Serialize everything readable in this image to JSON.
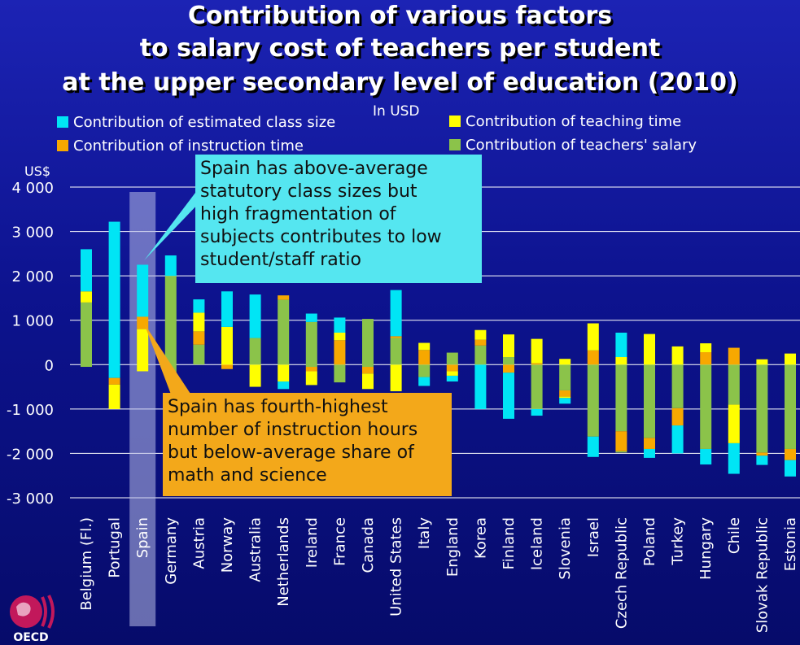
{
  "title": {
    "line1": "Contribution of various factors",
    "line2": "to salary cost of teachers per student",
    "line3": "at the upper secondary level of education (2010)"
  },
  "subtitle": "In USD",
  "legend": {
    "class_size": "Contribution of estimated class size",
    "teaching_time": "Contribution of teaching time",
    "instruction_time": "Contribution of instruction time",
    "salary": "Contribution of teachers' salary"
  },
  "annotations": {
    "callout_top": "Spain has above-average statutory class sizes but high fragmentation of subjects contributes to low student/staff ratio",
    "callout_top_lines": [
      "Spain has above-average",
      "statutory class sizes but",
      "high fragmentation of",
      "subjects contributes to low",
      "student/staff ratio"
    ],
    "callout_bottom": "Spain has fourth-highest number of instruction hours but below-average share of math and science",
    "callout_bottom_lines": [
      "Spain has fourth-highest",
      "number of instruction hours",
      "but below-average share of",
      "math and science"
    ]
  },
  "logo_text": "OECD",
  "colors": {
    "class_size": "#00e5f5",
    "teaching_time": "#ffff00",
    "instruction_time": "#f7a800",
    "salary": "#8bc34a",
    "highlight": "#b8bde8"
  },
  "chart_data": {
    "type": "bar",
    "stacked": true,
    "ylabel": "US$",
    "ylim": [
      -3000,
      4000
    ],
    "yticks": [
      4000,
      3000,
      2000,
      1000,
      0,
      -1000,
      -2000,
      -3000
    ],
    "ytick_labels": [
      "4 000",
      "3 000",
      "2 000",
      "1 000",
      "0",
      "-1 000",
      "-2 000",
      "-3 000"
    ],
    "highlight_category": "Spain",
    "categories": [
      "Belgium (Fl.)",
      "Portugal",
      "Spain",
      "Germany",
      "Austria",
      "Norway",
      "Australia",
      "Netherlands",
      "Ireland",
      "France",
      "Canada",
      "United States",
      "Italy",
      "England",
      "Korea",
      "Finland",
      "Iceland",
      "Slovenia",
      "Israel",
      "Czech Republic",
      "Poland",
      "Turkey",
      "Hungary",
      "Chile",
      "Slovak Republic",
      "Estonia"
    ],
    "segments": [
      [
        {
          "s": "salary",
          "from": -50,
          "to": 1400
        },
        {
          "s": "teaching",
          "from": 1400,
          "to": 1650
        },
        {
          "s": "class",
          "from": 1650,
          "to": 2600
        }
      ],
      [
        {
          "s": "class",
          "from": -300,
          "to": 3220
        },
        {
          "s": "instruction",
          "from": -450,
          "to": -300
        },
        {
          "s": "teaching",
          "from": -1000,
          "to": -450
        }
      ],
      [
        {
          "s": "teaching",
          "from": -150,
          "to": 800
        },
        {
          "s": "instruction",
          "from": 800,
          "to": 1080
        },
        {
          "s": "class",
          "from": 1080,
          "to": 2250
        }
      ],
      [
        {
          "s": "salary",
          "from": -300,
          "to": 2000
        },
        {
          "s": "class",
          "from": 2000,
          "to": 2460
        }
      ],
      [
        {
          "s": "salary",
          "from": 0,
          "to": 450
        },
        {
          "s": "instruction",
          "from": 450,
          "to": 750
        },
        {
          "s": "teaching",
          "from": 750,
          "to": 1170
        },
        {
          "s": "class",
          "from": 1170,
          "to": 1470
        }
      ],
      [
        {
          "s": "instruction",
          "from": -100,
          "to": 0
        },
        {
          "s": "teaching",
          "from": 0,
          "to": 850
        },
        {
          "s": "class",
          "from": 850,
          "to": 1650
        }
      ],
      [
        {
          "s": "teaching",
          "from": -500,
          "to": 0
        },
        {
          "s": "salary",
          "from": 0,
          "to": 600
        },
        {
          "s": "class",
          "from": 600,
          "to": 1580
        }
      ],
      [
        {
          "s": "class",
          "from": -550,
          "to": -380
        },
        {
          "s": "teaching",
          "from": -380,
          "to": 0
        },
        {
          "s": "salary",
          "from": 0,
          "to": 1460
        },
        {
          "s": "instruction",
          "from": 1460,
          "to": 1560
        }
      ],
      [
        {
          "s": "teaching",
          "from": -460,
          "to": -150
        },
        {
          "s": "instruction",
          "from": -150,
          "to": -50
        },
        {
          "s": "salary",
          "from": -50,
          "to": 960
        },
        {
          "s": "class",
          "from": 960,
          "to": 1150
        }
      ],
      [
        {
          "s": "salary",
          "from": -400,
          "to": 0
        },
        {
          "s": "instruction",
          "from": 0,
          "to": 550
        },
        {
          "s": "teaching",
          "from": 550,
          "to": 720
        },
        {
          "s": "class",
          "from": 720,
          "to": 1060
        }
      ],
      [
        {
          "s": "teaching",
          "from": -550,
          "to": -200
        },
        {
          "s": "instruction",
          "from": -200,
          "to": -50
        },
        {
          "s": "salary",
          "from": -50,
          "to": 1030
        }
      ],
      [
        {
          "s": "teaching",
          "from": -600,
          "to": 0
        },
        {
          "s": "salary",
          "from": 0,
          "to": 600
        },
        {
          "s": "instruction",
          "from": 600,
          "to": 640
        },
        {
          "s": "class",
          "from": 640,
          "to": 1680
        }
      ],
      [
        {
          "s": "class",
          "from": -480,
          "to": -280
        },
        {
          "s": "salary",
          "from": -280,
          "to": 0
        },
        {
          "s": "instruction",
          "from": 0,
          "to": 330
        },
        {
          "s": "teaching",
          "from": 330,
          "to": 490
        }
      ],
      [
        {
          "s": "class",
          "from": -380,
          "to": -250
        },
        {
          "s": "teaching",
          "from": -250,
          "to": -150
        },
        {
          "s": "instruction",
          "from": -150,
          "to": 0
        },
        {
          "s": "salary",
          "from": 0,
          "to": 270
        }
      ],
      [
        {
          "s": "class",
          "from": -1000,
          "to": 0
        },
        {
          "s": "salary",
          "from": 0,
          "to": 430
        },
        {
          "s": "instruction",
          "from": 430,
          "to": 560
        },
        {
          "s": "teaching",
          "from": 560,
          "to": 780
        }
      ],
      [
        {
          "s": "class",
          "from": -1220,
          "to": -180
        },
        {
          "s": "instruction",
          "from": -180,
          "to": 0
        },
        {
          "s": "salary",
          "from": 0,
          "to": 170
        },
        {
          "s": "teaching",
          "from": 170,
          "to": 680
        }
      ],
      [
        {
          "s": "class",
          "from": -1150,
          "to": -1000
        },
        {
          "s": "salary",
          "from": -1000,
          "to": 0
        },
        {
          "s": "instruction",
          "from": 0,
          "to": 30
        },
        {
          "s": "teaching",
          "from": 30,
          "to": 580
        }
      ],
      [
        {
          "s": "class",
          "from": -880,
          "to": -750
        },
        {
          "s": "teaching",
          "from": -750,
          "to": -720
        },
        {
          "s": "instruction",
          "from": -720,
          "to": -580
        },
        {
          "s": "salary",
          "from": -580,
          "to": 0
        },
        {
          "s": "teaching",
          "from": 0,
          "to": 130
        }
      ],
      [
        {
          "s": "class",
          "from": -2080,
          "to": -1620
        },
        {
          "s": "salary",
          "from": -1620,
          "to": 0
        },
        {
          "s": "instruction",
          "from": 0,
          "to": 320
        },
        {
          "s": "teaching",
          "from": 320,
          "to": 930
        }
      ],
      [
        {
          "s": "salary",
          "from": -1980,
          "to": -1950
        },
        {
          "s": "instruction",
          "from": -1950,
          "to": -1500
        },
        {
          "s": "salary",
          "from": -1500,
          "to": 0
        },
        {
          "s": "teaching",
          "from": 0,
          "to": 170
        },
        {
          "s": "class",
          "from": 170,
          "to": 720
        }
      ],
      [
        {
          "s": "class",
          "from": -2100,
          "to": -1900
        },
        {
          "s": "instruction",
          "from": -1900,
          "to": -1650
        },
        {
          "s": "salary",
          "from": -1650,
          "to": 0
        },
        {
          "s": "teaching",
          "from": 0,
          "to": 690
        }
      ],
      [
        {
          "s": "class",
          "from": -2000,
          "to": -1370
        },
        {
          "s": "instruction",
          "from": -1370,
          "to": -980
        },
        {
          "s": "salary",
          "from": -980,
          "to": 0
        },
        {
          "s": "teaching",
          "from": 0,
          "to": 410
        }
      ],
      [
        {
          "s": "class",
          "from": -2250,
          "to": -1900
        },
        {
          "s": "salary",
          "from": -1900,
          "to": 0
        },
        {
          "s": "instruction",
          "from": 0,
          "to": 280
        },
        {
          "s": "teaching",
          "from": 280,
          "to": 480
        }
      ],
      [
        {
          "s": "class",
          "from": -2460,
          "to": -1770
        },
        {
          "s": "teaching",
          "from": -1770,
          "to": -900
        },
        {
          "s": "salary",
          "from": -900,
          "to": 0
        },
        {
          "s": "instruction",
          "from": 0,
          "to": 380
        }
      ],
      [
        {
          "s": "class",
          "from": -2260,
          "to": -2050
        },
        {
          "s": "instruction",
          "from": -2050,
          "to": -1980
        },
        {
          "s": "salary",
          "from": -1980,
          "to": 0
        },
        {
          "s": "teaching",
          "from": 0,
          "to": 120
        }
      ],
      [
        {
          "s": "class",
          "from": -2520,
          "to": -2150
        },
        {
          "s": "instruction",
          "from": -2150,
          "to": -1900
        },
        {
          "s": "salary",
          "from": -1900,
          "to": 0
        },
        {
          "s": "teaching",
          "from": 0,
          "to": 250
        }
      ]
    ]
  }
}
